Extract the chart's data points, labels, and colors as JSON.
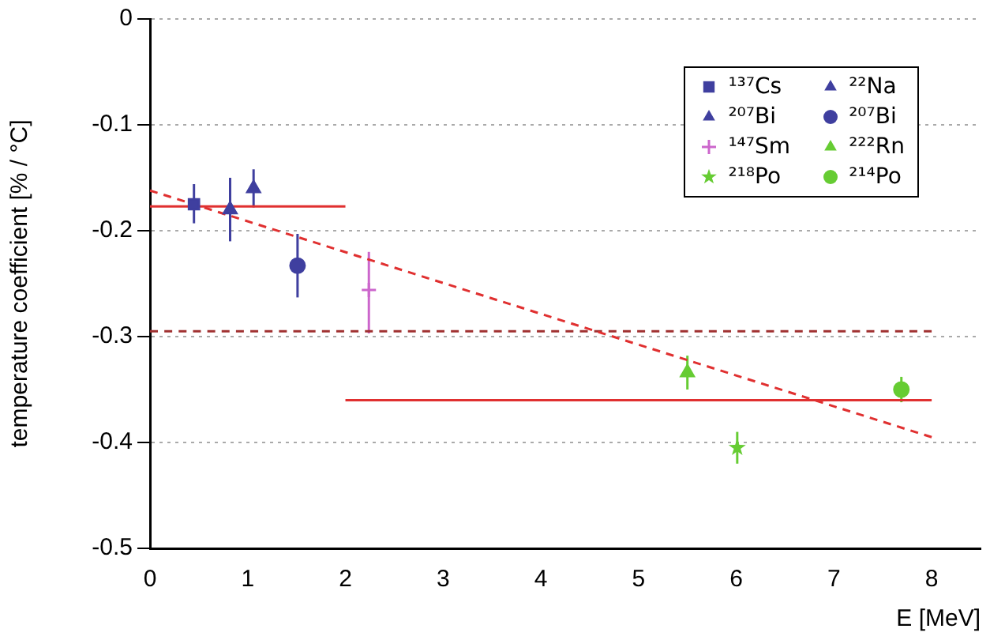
{
  "chart_data": {
    "type": "scatter",
    "xlabel": "E [MeV]",
    "ylabel": "temperature coefficient [% / °C]",
    "xlim": [
      0,
      8.5
    ],
    "xticks": [
      0,
      1,
      2,
      3,
      4,
      5,
      6,
      7,
      8
    ],
    "ylim": [
      -0.5,
      0
    ],
    "yticks": [
      -0.5,
      -0.4,
      -0.3,
      -0.2,
      -0.1,
      0
    ],
    "grid": "y",
    "legend": "top right",
    "series": [
      {
        "name": "¹³⁷Cs",
        "color": "#3f3f9f",
        "marker": "square",
        "x": [
          0.45
        ],
        "values": [
          -0.175
        ],
        "errors": [
          [
            -0.193,
            -0.156
          ]
        ]
      },
      {
        "name": "²²Na",
        "color": "#3f3f9f",
        "marker": "triangle",
        "x": [
          1.06
        ],
        "values": [
          -0.16
        ],
        "errors": [
          0.018
        ]
      },
      {
        "name": "²⁰⁷Bi",
        "color": "#3f3f9f",
        "marker": "triangle",
        "x": [
          0.82
        ],
        "values": [
          -0.18
        ],
        "errors": [
          0.03
        ]
      },
      {
        "name": "²⁰⁷Bi",
        "color": "#3f3f9f",
        "marker": "circle",
        "x": [
          1.51
        ],
        "values": [
          -0.233
        ],
        "errors": [
          0.03
        ]
      },
      {
        "name": "¹⁴⁷Sm",
        "color": "#cc66cc",
        "marker": "cross",
        "x": [
          2.24
        ],
        "values": [
          -0.256
        ],
        "errors": [
          [
            -0.297,
            -0.22
          ]
        ]
      },
      {
        "name": "²²²Rn",
        "color": "#66cc33",
        "marker": "triangle",
        "x": [
          5.5
        ],
        "values": [
          -0.334
        ],
        "errors": [
          0.016
        ]
      },
      {
        "name": "²¹⁸Po",
        "color": "#66cc33",
        "marker": "star",
        "x": [
          6.01
        ],
        "values": [
          -0.405
        ],
        "errors": [
          0.015
        ]
      },
      {
        "name": "²¹⁴Po",
        "color": "#66cc33",
        "marker": "circle",
        "x": [
          7.69
        ],
        "values": [
          -0.35
        ],
        "errors": [
          0.012
        ]
      },
      {
        "type": "line",
        "color": "#e03030",
        "line_style": "solid",
        "x": [
          0,
          2
        ],
        "values": [
          -0.177,
          -0.177
        ]
      },
      {
        "type": "line",
        "color": "#e03030",
        "line_style": "solid",
        "x": [
          2,
          8
        ],
        "values": [
          -0.36,
          -0.36
        ]
      },
      {
        "type": "line",
        "color": "#e03030",
        "line_style": "dashed",
        "x": [
          0,
          8
        ],
        "values": [
          -0.162,
          -0.395
        ]
      },
      {
        "type": "line",
        "color": "#a03030",
        "line_style": "dashed",
        "x": [
          0,
          8
        ],
        "values": [
          -0.295,
          -0.295
        ]
      }
    ]
  }
}
